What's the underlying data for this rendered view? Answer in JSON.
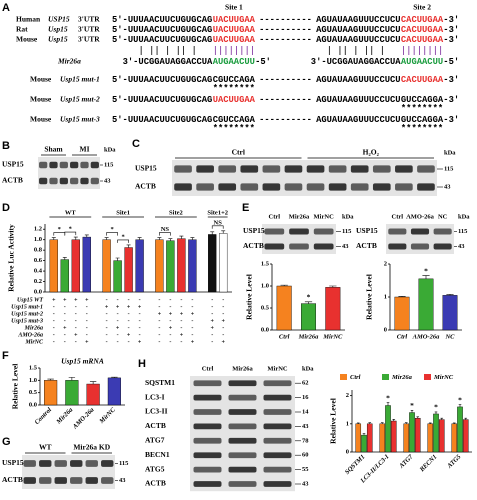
{
  "panels": {
    "A": {
      "label": "A",
      "site_labels": [
        "Site 1",
        "Site 2"
      ],
      "utr_lines": [
        {
          "species": "Human",
          "gene": "USP15",
          "region": "3'UTR",
          "seq": [
            "5'-UUUAACUUCUGUGCAG",
            "UACUUGAA",
            "----------",
            "AGUAUAAGUUUCCUCU",
            "CACUUGAA",
            "-3'"
          ],
          "seq_colors": [
            "#000000",
            "#e8312f",
            "#000000",
            "#000000",
            "#e8312f",
            "#000000"
          ]
        },
        {
          "species": "Rat",
          "gene": "Usp15",
          "region": "3'UTR",
          "seq": [
            "5'-UUUAACUUCUGUGCAG",
            "UACUUGAA",
            "----------",
            "AGUAUAAGUUUCCUCU",
            "CACUUGAA",
            "-3'"
          ],
          "seq_colors": [
            "#000000",
            "#e8312f",
            "#000000",
            "#000000",
            "#e8312f",
            "#000000"
          ]
        },
        {
          "species": "Mouse",
          "gene": "Usp15",
          "region": "3'UTR",
          "seq": [
            "5'-UUUAACUUCUGUGCAG",
            "UACUUGAA",
            "----------",
            "AGUAUAAGUUUCCUCU",
            "CACUUGAA",
            "-3'"
          ],
          "seq_colors": [
            "#000000",
            "#e8312f",
            "#000000",
            "#000000",
            "#e8312f",
            "#000000"
          ]
        }
      ],
      "mir": {
        "name": "Mir26a",
        "seq": [
          "3'-UCGGAUAGGACCUA",
          "AUGAACUU",
          "-5'",
          "3'-UCGGAUAGGACCUA",
          "AUGAACUU",
          "-5'"
        ],
        "seq_colors": [
          "#000000",
          "#1a9c3e",
          "#000000",
          "#000000",
          "#1a9c3e",
          "#000000"
        ]
      },
      "mut_lines": [
        {
          "species": "Mouse",
          "gene": "Usp15 mut-1",
          "seq": [
            "5'-UUUAACUUCUGUGCAG",
            "CGUCCAGA",
            "----------",
            "AGUAUAAGUUUCCUCU",
            "CACUUGAA",
            "-3'"
          ],
          "seq_colors": [
            "#000000",
            "#000000",
            "#000000",
            "#000000",
            "#e8312f",
            "#000000"
          ],
          "stars_site1": "********"
        },
        {
          "species": "Mouse",
          "gene": "Usp15 mut-2",
          "seq": [
            "5'-UUUAACUUCUGUGCAG",
            "UACUUGAA",
            "----------",
            "AGUAUAAGUUUCCUCU",
            "GUCCAGGA",
            "-3'"
          ],
          "seq_colors": [
            "#000000",
            "#e8312f",
            "#000000",
            "#000000",
            "#000000",
            "#000000"
          ],
          "stars_site2": "********"
        },
        {
          "species": "Mouse",
          "gene": "Usp15 mut-3",
          "seq": [
            "5'-UUUAACUUCUGUGCAG",
            "CGUCCAGA",
            "----------",
            "AGUAUAAGUUUCCUCU",
            "GUCCAGGA",
            "-3'"
          ],
          "seq_colors": [
            "#000000",
            "#000000",
            "#000000",
            "#000000",
            "#000000",
            "#000000"
          ],
          "stars_site1": "********",
          "stars_site2": "********"
        }
      ]
    },
    "B": {
      "label": "B",
      "lanes": [
        "Sham",
        "MI"
      ],
      "rows": [
        "USP15",
        "ACTB"
      ],
      "unit": "kDa",
      "sizes": [
        115,
        43
      ]
    },
    "C": {
      "label": "C",
      "lanes": [
        "Ctrl",
        "H₂O₂"
      ],
      "rows": [
        "USP15",
        "ACTB"
      ],
      "unit": "kDa",
      "sizes": [
        115,
        43
      ]
    },
    "D": {
      "label": "D",
      "chart_data": {
        "type": "grouped-bar",
        "ylabel": "Relative Luc Activity",
        "ylim": [
          0,
          1.3
        ],
        "yticks": [
          {
            "value": 0,
            "label": "0.0"
          },
          0.2,
          0.4,
          0.6,
          0.8,
          {
            "value": 1,
            "label": "1.0"
          },
          1.2
        ],
        "groups": [
          {
            "name": "WT",
            "values": [
              1.0,
              0.62,
              1.0,
              1.05
            ],
            "errors": [
              0.04,
              0.04,
              0.05,
              0.04
            ],
            "colors": [
              "#f5821f",
              "#3aaa35",
              "#e8312f",
              "#3b3bb3"
            ],
            "sig": [
              {
                "text": "*",
                "from": 0,
                "to": 1
              },
              {
                "text": "*",
                "from": 1,
                "to": 2
              }
            ]
          },
          {
            "name": "Site1",
            "values": [
              1.0,
              0.6,
              0.85,
              1.0
            ],
            "errors": [
              0.04,
              0.05,
              0.05,
              0.04
            ],
            "colors": [
              "#f5821f",
              "#3aaa35",
              "#e8312f",
              "#3b3bb3"
            ],
            "sig": [
              {
                "text": "*",
                "from": 0,
                "to": 1
              },
              {
                "text": "*",
                "from": 1,
                "to": 2
              }
            ]
          },
          {
            "name": "Site2",
            "values": [
              1.0,
              0.98,
              1.02,
              1.0
            ],
            "errors": [
              0.04,
              0.04,
              0.05,
              0.04
            ],
            "colors": [
              "#f5821f",
              "#3aaa35",
              "#e8312f",
              "#3b3bb3"
            ],
            "sig": [
              {
                "text": "NS",
                "from": 0,
                "to": 1
              }
            ]
          },
          {
            "name": "Site1+2",
            "values": [
              1.1,
              1.12
            ],
            "errors": [
              0.05,
              0.05
            ],
            "colors": [
              "#111111",
              "#ffffff"
            ],
            "sig": [
              {
                "text": "NS",
                "from": 0,
                "to": 1
              }
            ]
          }
        ]
      },
      "table": {
        "rows": [
          {
            "label": "Usp15 WT",
            "cells": [
              "+",
              "+",
              "+",
              "+",
              "-",
              "-",
              "-",
              "-",
              "-",
              "-",
              "-",
              "-",
              "-",
              "-"
            ]
          },
          {
            "label": "Usp15 mut-1",
            "cells": [
              "-",
              "-",
              "-",
              "-",
              "+",
              "+",
              "+",
              "+",
              "-",
              "-",
              "-",
              "-",
              "-",
              "-"
            ]
          },
          {
            "label": "Usp15 mut-2",
            "cells": [
              "-",
              "-",
              "-",
              "-",
              "-",
              "-",
              "-",
              "-",
              "+",
              "+",
              "+",
              "+",
              "-",
              "-"
            ]
          },
          {
            "label": "Usp15 mut-3",
            "cells": [
              "-",
              "-",
              "-",
              "-",
              "-",
              "-",
              "-",
              "-",
              "-",
              "-",
              "-",
              "-",
              "+",
              "+"
            ]
          },
          {
            "label": "Mir26a",
            "cells": [
              "-",
              "+",
              "-",
              "-",
              "-",
              "+",
              "-",
              "-",
              "-",
              "+",
              "-",
              "-",
              "+",
              "-"
            ]
          },
          {
            "label": "AMO-26a",
            "cells": [
              "-",
              "-",
              "+",
              "-",
              "-",
              "-",
              "+",
              "-",
              "-",
              "-",
              "+",
              "-",
              "-",
              "-"
            ]
          },
          {
            "label": "MirNC",
            "cells": [
              "-",
              "-",
              "-",
              "+",
              "-",
              "-",
              "-",
              "+",
              "-",
              "-",
              "-",
              "+",
              "-",
              "+"
            ]
          }
        ]
      }
    },
    "E": {
      "label": "E",
      "blots": [
        {
          "lanes": [
            "Ctrl",
            "Mir26a",
            "MirNC"
          ],
          "rows": [
            "USP15",
            "ACTB"
          ],
          "unit": "kDa",
          "sizes": [
            115,
            43
          ]
        },
        {
          "lanes": [
            "Ctrl",
            "AMO-26a",
            "NC"
          ],
          "rows": [
            "USP15",
            "ACTB"
          ],
          "unit": "kDa",
          "sizes": [
            115,
            43
          ]
        }
      ],
      "charts": [
        {
          "type": "bar",
          "ylabel": "Relative Level",
          "categories": [
            "Ctrl",
            "Mir26a",
            "MirNC"
          ],
          "values": [
            1.0,
            0.6,
            0.97
          ],
          "errors": [
            0.02,
            0.04,
            0.03
          ],
          "colors": [
            "#f5821f",
            "#3aaa35",
            "#e8312f"
          ],
          "ylim": [
            0,
            1.5
          ],
          "yticks": [
            {
              "value": 0,
              "label": "0.0"
            },
            0.5,
            {
              "value": 1,
              "label": "1.0"
            },
            1.5
          ],
          "sig": [
            {
              "text": "*",
              "bar": 1
            }
          ]
        },
        {
          "type": "bar",
          "ylabel": "Relative Level",
          "categories": [
            "Ctrl",
            "AMO-26a",
            "NC"
          ],
          "values": [
            1.0,
            1.55,
            1.05
          ],
          "errors": [
            0.02,
            0.1,
            0.03
          ],
          "colors": [
            "#f5821f",
            "#3aaa35",
            "#3b3bb3"
          ],
          "ylim": [
            0,
            2
          ],
          "yticks": [
            0,
            1,
            2
          ],
          "sig": [
            {
              "text": "*",
              "bar": 1
            }
          ]
        }
      ]
    },
    "F": {
      "label": "F",
      "chart_data": {
        "type": "bar",
        "title": "Usp15 mRNA",
        "ylabel": "Relative Level",
        "categories": [
          "Control",
          "Mir26a",
          "AMO-26a",
          "MirNC"
        ],
        "values": [
          1.0,
          1.0,
          0.85,
          1.1
        ],
        "errors": [
          0.05,
          0.12,
          0.1,
          0.03
        ],
        "colors": [
          "#f5821f",
          "#3aaa35",
          "#e8312f",
          "#3b3bb3"
        ],
        "ylim": [
          0,
          1.5
        ],
        "yticks": [
          {
            "value": 0,
            "label": "0.0"
          },
          0.5,
          {
            "value": 1,
            "label": "1.0"
          },
          1.5
        ]
      }
    },
    "G": {
      "label": "G",
      "lanes": [
        "WT",
        "Mir26a KD"
      ],
      "rows": [
        "USP15",
        "ACTB"
      ],
      "sizes": [
        115,
        43
      ]
    },
    "H": {
      "label": "H",
      "blot": {
        "lanes": [
          "Ctrl",
          "Mir26a",
          "MirNC"
        ],
        "rows": [
          "SQSTM1",
          "LC3-I",
          "LC3-II",
          "ACTB",
          "ATG7",
          "BECN1",
          "ATG5",
          "ACTB"
        ],
        "unit": "kDa",
        "sizes": [
          62,
          16,
          14,
          43,
          78,
          60,
          55,
          43
        ]
      },
      "chart_data": {
        "type": "grouped-bar",
        "ylabel": "Relative Level",
        "categories": [
          "SQSTM1",
          "LC3-II/LC3-I",
          "ATG7",
          "BECN1",
          "ATG5"
        ],
        "series": [
          {
            "name": "Ctrl",
            "color": "#f5821f",
            "values": [
              1,
              1,
              1,
              1,
              1
            ],
            "errors": [
              0.03,
              0.04,
              0.04,
              0.03,
              0.03
            ]
          },
          {
            "name": "Mir26a",
            "color": "#3aaa35",
            "values": [
              0.6,
              1.65,
              1.4,
              1.35,
              1.6
            ],
            "errors": [
              0.05,
              0.1,
              0.08,
              0.07,
              0.08
            ]
          },
          {
            "name": "MirNC",
            "color": "#e8312f",
            "values": [
              1.0,
              1.1,
              1.2,
              1.15,
              1.15
            ],
            "errors": [
              0.04,
              0.06,
              0.05,
              0.05,
              0.05
            ]
          }
        ],
        "ylim": [
          0,
          2.2
        ],
        "yticks": [
          0,
          1,
          2
        ],
        "sig": [
          {
            "text": "*",
            "category": 1,
            "series": 1
          },
          {
            "text": "*",
            "category": 2,
            "series": 1
          },
          {
            "text": "*",
            "category": 3,
            "series": 1
          },
          {
            "text": "*",
            "category": 4,
            "series": 1
          }
        ]
      }
    }
  }
}
